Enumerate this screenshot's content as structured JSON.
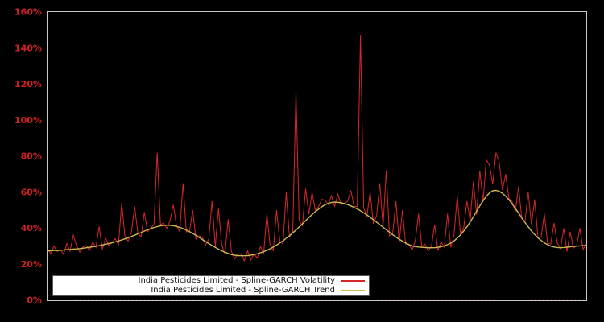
{
  "window": {
    "background_color": "#000000"
  },
  "axis": {
    "border_color": "#c8c8c8",
    "tick_label_color": "#cd2222",
    "x_tick_color": "#7c1f1f",
    "x_labels_visible": false
  },
  "legend": {
    "position": "lower-left",
    "background_color": "#ffffff",
    "text_color": "#111111"
  },
  "chart_data": {
    "type": "line",
    "title": "",
    "xlabel": "",
    "ylabel": "",
    "unit": "%",
    "grid": false,
    "ylim": [
      0,
      160
    ],
    "y_ticks": [
      "0%",
      "20%",
      "40%",
      "60%",
      "80%",
      "100%",
      "120%",
      "140%",
      "160%"
    ],
    "y_tick_values": [
      0,
      20,
      40,
      60,
      80,
      100,
      120,
      140,
      160
    ],
    "x_point_count": 168,
    "series": [
      {
        "name": "India Pesticides Limited - Spline-GARCH Volatility",
        "color": "#d62728",
        "values": [
          28.7,
          25.7,
          30.2,
          27.1,
          28.2,
          25.5,
          31.5,
          27.2,
          36.0,
          30.3,
          26.7,
          29.7,
          30.4,
          27.6,
          32.3,
          29.4,
          41.0,
          28.3,
          34.5,
          30.5,
          32.1,
          34.2,
          30.9,
          54.0,
          35.3,
          32.9,
          38.0,
          52.0,
          37.3,
          35.2,
          49.0,
          38.1,
          40.0,
          42.2,
          82.0,
          42.1,
          42.8,
          39.9,
          44.2,
          53.0,
          41.4,
          38.1,
          65.0,
          38.0,
          38.3,
          50.0,
          34.0,
          35.7,
          34.9,
          30.8,
          34.1,
          55.0,
          29.8,
          51.0,
          30.9,
          25.7,
          45.0,
          27.2,
          23.0,
          25.6,
          25.9,
          21.9,
          27.4,
          22.4,
          25.8,
          23.4,
          29.8,
          26.0,
          48.0,
          30.4,
          27.6,
          50.0,
          33.0,
          31.2,
          60.0,
          35.2,
          37.8,
          116.0,
          44.1,
          41.4,
          62.0,
          47.7,
          60.0,
          50.0,
          51.8,
          56.0,
          55.6,
          53.2,
          58.0,
          52.1,
          59.0,
          53.1,
          53.9,
          54.9,
          61.0,
          52.4,
          51.9,
          147.0,
          51.2,
          46.8,
          60.0,
          42.4,
          46.8,
          65.0,
          40.8,
          72.0,
          35.8,
          37.2,
          55.0,
          32.1,
          50.0,
          31.2,
          31.3,
          27.8,
          33.1,
          48.0,
          29.8,
          31.2,
          27.3,
          30.0,
          42.0,
          27.6,
          32.3,
          29.6,
          48.0,
          29.4,
          36.4,
          58.0,
          36.5,
          40.2,
          55.0,
          44.3,
          66.0,
          47.6,
          72.0,
          54.6,
          78.0,
          75.0,
          64.4,
          82.0,
          77.0,
          61.2,
          70.0,
          56.6,
          54.7,
          49.2,
          63.0,
          45.2,
          43.6,
          60.0,
          41.9,
          56.0,
          34.9,
          35.0,
          48.0,
          31.7,
          31.3,
          43.0,
          31.9,
          28.6,
          40.0,
          27.1,
          38.0,
          28.9,
          30.3,
          40.0,
          28.3,
          31.2
        ]
      },
      {
        "name": "India Pesticides Limited - Spline-GARCH Trend",
        "color": "#ccb952",
        "values": [
          27.5,
          27.5,
          27.6,
          27.7,
          27.8,
          27.9,
          28.1,
          28.2,
          28.4,
          28.5,
          28.7,
          28.9,
          29.2,
          29.4,
          29.7,
          30.0,
          30.3,
          30.7,
          31.1,
          31.5,
          31.9,
          32.4,
          32.9,
          33.5,
          34.1,
          34.7,
          35.4,
          36.1,
          36.9,
          37.6,
          38.4,
          39.1,
          39.8,
          40.4,
          40.9,
          41.3,
          41.6,
          41.7,
          41.6,
          41.4,
          41.0,
          40.5,
          39.8,
          39.0,
          38.1,
          37.1,
          36.0,
          34.9,
          33.7,
          32.6,
          31.5,
          30.4,
          29.4,
          28.4,
          27.5,
          26.7,
          26.0,
          25.4,
          25.0,
          24.8,
          24.7,
          24.7,
          24.8,
          25.0,
          25.4,
          25.8,
          26.4,
          27.0,
          27.8,
          28.6,
          29.6,
          30.6,
          31.8,
          33.0,
          34.4,
          35.8,
          37.4,
          39.0,
          40.7,
          42.4,
          44.2,
          45.9,
          47.6,
          49.2,
          50.6,
          51.9,
          53.0,
          53.8,
          54.3,
          54.5,
          54.4,
          54.1,
          53.7,
          53.1,
          52.4,
          51.6,
          50.7,
          49.7,
          48.6,
          47.4,
          46.1,
          44.8,
          43.4,
          42.0,
          40.6,
          39.2,
          37.8,
          36.4,
          35.1,
          33.9,
          32.8,
          31.8,
          30.9,
          30.2,
          29.8,
          29.6,
          29.4,
          29.3,
          29.2,
          29.2,
          29.2,
          29.4,
          29.7,
          30.2,
          30.9,
          31.8,
          33.0,
          34.5,
          36.3,
          38.4,
          40.8,
          43.5,
          46.4,
          49.4,
          52.4,
          55.2,
          57.7,
          59.6,
          60.8,
          61.0,
          60.5,
          59.4,
          57.8,
          55.8,
          53.5,
          51.0,
          48.4,
          45.8,
          43.2,
          40.8,
          38.5,
          36.5,
          34.7,
          33.2,
          31.9,
          30.9,
          30.1,
          29.6,
          29.3,
          29.2,
          29.3,
          29.5,
          29.7,
          29.9,
          30.1,
          30.2,
          30.3,
          30.4
        ]
      }
    ]
  }
}
